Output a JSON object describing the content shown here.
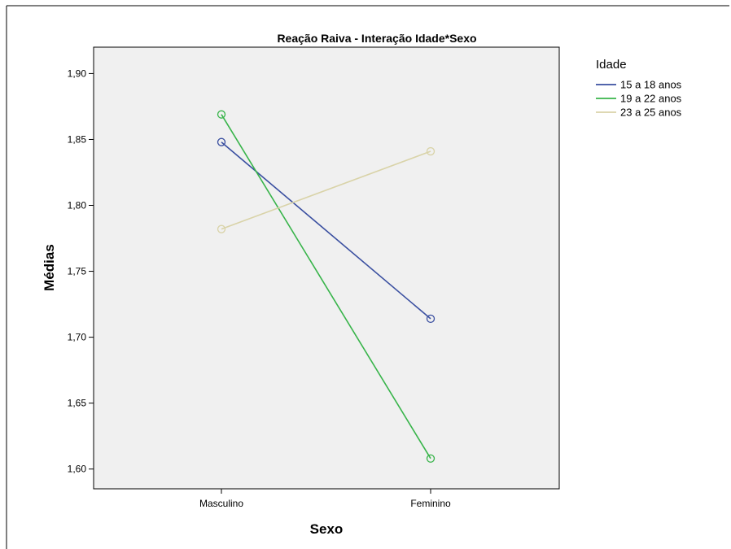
{
  "chart_data": {
    "type": "line",
    "title": "Reação Raiva - Interação Idade*Sexo",
    "xlabel": "Sexo",
    "ylabel": "Médias",
    "categories": [
      "Masculino",
      "Feminino"
    ],
    "ylim": [
      1.585,
      1.92
    ],
    "yticks": [
      "1,60",
      "1,65",
      "1,70",
      "1,75",
      "1,80",
      "1,85",
      "1,90"
    ],
    "ytick_values": [
      1.6,
      1.65,
      1.7,
      1.75,
      1.8,
      1.85,
      1.9
    ],
    "grid": false,
    "legend": {
      "title": "Idade",
      "placement": "top-right"
    },
    "series": [
      {
        "name": "15 a 18 anos",
        "values": [
          1.848,
          1.714
        ],
        "color": "#3a4fa0"
      },
      {
        "name": "19 a 22 anos",
        "values": [
          1.869,
          1.608
        ],
        "color": "#38b44a"
      },
      {
        "name": "23 a 25 anos",
        "values": [
          1.782,
          1.841
        ],
        "color": "#d9d3a8"
      }
    ],
    "plot_background": "#f0f0f0"
  }
}
